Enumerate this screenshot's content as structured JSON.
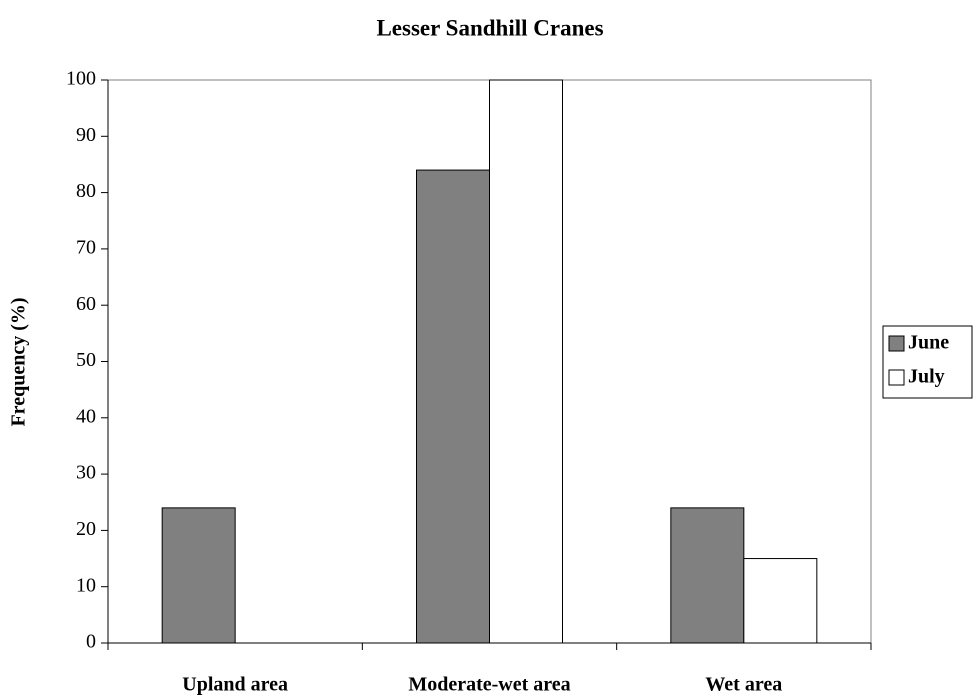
{
  "chart_data": {
    "type": "bar",
    "title": "Lesser Sandhill Cranes",
    "y_label": "Frequency (%)",
    "categories": [
      "Upland area",
      "Moderate-wet area",
      "Wet area"
    ],
    "series": [
      {
        "name": "June",
        "color": "#808080",
        "values": [
          24,
          84,
          24
        ]
      },
      {
        "name": "July",
        "color": "#ffffff",
        "values": [
          0,
          100,
          15
        ]
      }
    ],
    "ylim": [
      0,
      100
    ],
    "yticks": [
      0,
      10,
      20,
      30,
      40,
      50,
      60,
      70,
      80,
      90,
      100
    ],
    "grid": false,
    "legend": "right"
  }
}
